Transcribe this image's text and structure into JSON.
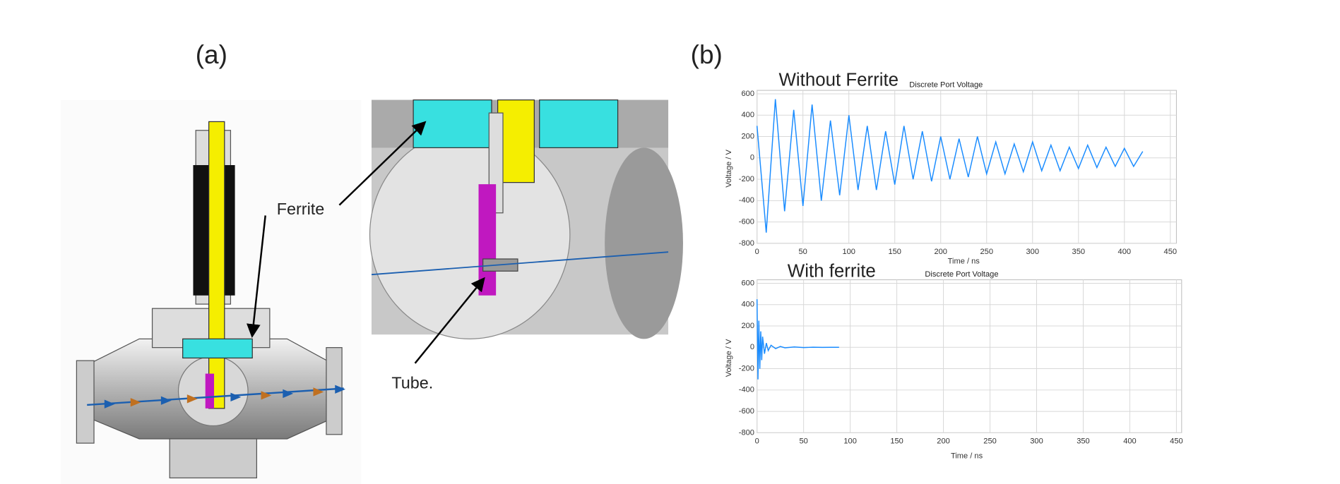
{
  "labels": {
    "panel_a": "(a)",
    "panel_b": "(b)",
    "ferrite": "Ferrite",
    "tube": "Tube."
  },
  "chart_data": [
    {
      "type": "line",
      "overlay_title": "Without Ferrite",
      "title": "Discrete Port Voltage",
      "x_label": "Time / ns",
      "y_label": "Voltage / V",
      "color": "#1a8cff",
      "x": [
        0,
        10,
        20,
        30,
        40,
        50,
        60,
        70,
        80,
        90,
        100,
        110,
        120,
        130,
        140,
        150,
        160,
        170,
        180,
        190,
        200,
        210,
        220,
        230,
        240,
        250,
        260,
        270,
        280,
        290,
        300,
        310,
        320,
        330,
        340,
        350,
        360,
        370,
        380,
        390,
        400,
        410,
        420
      ],
      "values": [
        300,
        -700,
        550,
        -500,
        450,
        -450,
        500,
        -400,
        350,
        -350,
        400,
        -300,
        300,
        -300,
        250,
        -250,
        300,
        -200,
        250,
        -220,
        200,
        -200,
        180,
        -180,
        200,
        -150,
        150,
        -150,
        130,
        -130,
        150,
        -120,
        120,
        -120,
        100,
        -100,
        120,
        -90,
        100,
        -80,
        90,
        -80,
        60
      ],
      "xlim": [
        0,
        450
      ],
      "xticks": [
        0,
        50,
        100,
        150,
        200,
        250,
        300,
        350,
        400,
        450
      ],
      "ylim": [
        -800,
        600
      ],
      "yticks": [
        -800,
        -600,
        -400,
        -200,
        0,
        200,
        400,
        600
      ],
      "grid": true
    },
    {
      "type": "line",
      "overlay_title": "With ferrite",
      "title": "Discrete Port Voltage",
      "x_label": "Time / ns",
      "y_label": "Voltage / V",
      "color": "#1a8cff",
      "x": [
        0,
        1,
        2,
        3,
        4,
        5,
        6,
        8,
        10,
        12,
        15,
        20,
        25,
        30,
        40,
        50,
        60,
        70,
        80,
        88
      ],
      "values": [
        450,
        -300,
        250,
        -200,
        150,
        -120,
        100,
        -60,
        40,
        -30,
        20,
        -12,
        8,
        -5,
        3,
        -2,
        1,
        -1,
        0,
        0
      ],
      "xlim": [
        0,
        450
      ],
      "xticks": [
        0,
        50,
        100,
        150,
        200,
        250,
        300,
        350,
        400,
        450
      ],
      "ylim": [
        -800,
        600
      ],
      "yticks": [
        -800,
        -600,
        -400,
        -200,
        0,
        200,
        400,
        600
      ],
      "grid": true
    }
  ]
}
